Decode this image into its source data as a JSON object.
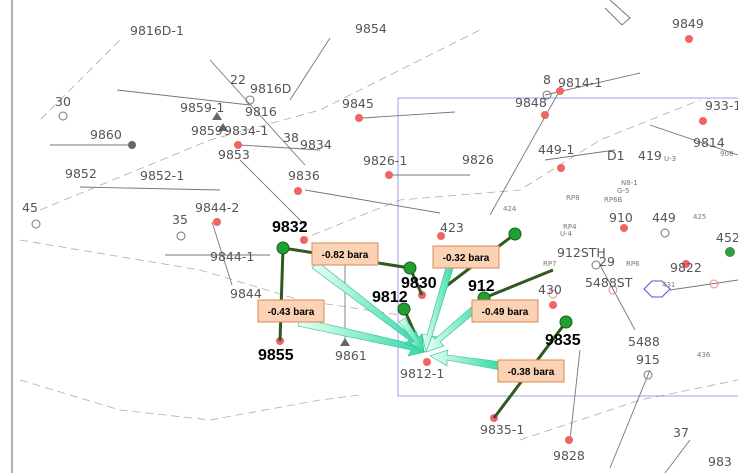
{
  "wells": [
    "9816D-1",
    "9854",
    "9849",
    "9816D",
    "22",
    "9816",
    "30",
    "9859-1",
    "9859",
    "9834-1",
    "38",
    "9834",
    "9845",
    "8",
    "9814-1",
    "9848",
    "933-1",
    "9814",
    "9860",
    "9853",
    "9826-1",
    "9826",
    "449-1",
    "D1",
    "419",
    "9852",
    "9852-1",
    "9836",
    "45",
    "9844-2",
    "35",
    "423",
    "910",
    "449",
    "9844-1",
    "912STH",
    "9822",
    "5488ST",
    "430",
    "9844",
    "9861",
    "915",
    "5488",
    "9812-1",
    "9835-1",
    "9828",
    "452",
    "37",
    "983",
    "29"
  ],
  "minor_labels": [
    "U-3",
    "N8-1",
    "G-5",
    "RP8",
    "RP6B",
    "RP4",
    "U-4",
    "RP7",
    "RP6",
    "424",
    "425",
    "431",
    "436",
    "908"
  ],
  "highlighted_wells": [
    "9832",
    "9830",
    "9812",
    "912",
    "9835",
    "9855"
  ],
  "pressure_labels": [
    "-0.82 bara",
    "-0.32 bara",
    "-0.43 bara",
    "-0.49 bara",
    "-0.38 bara"
  ]
}
